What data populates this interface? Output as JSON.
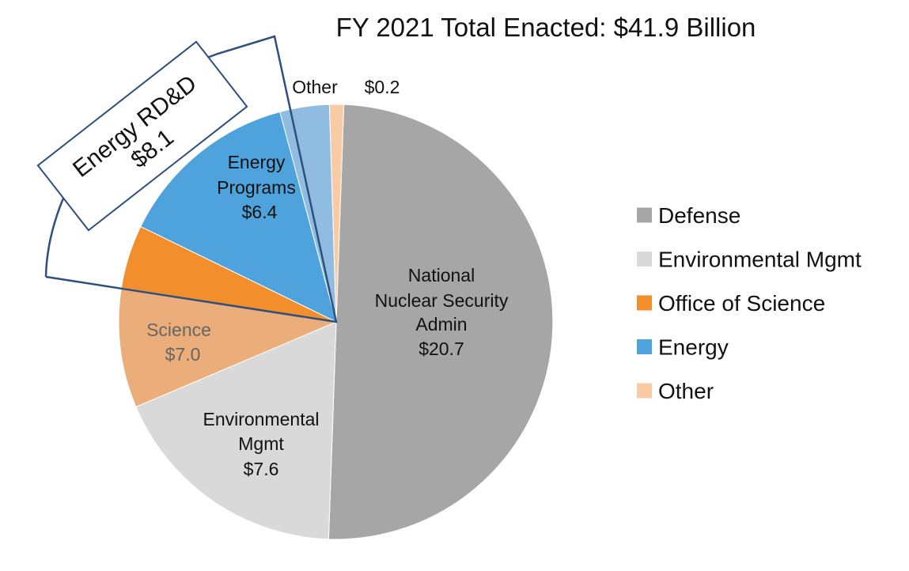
{
  "chart_data": {
    "type": "pie",
    "title": "FY 2021 Total Enacted: $41.9 Billion",
    "unit": "$ Billion",
    "colors": {
      "defense": "#a6a6a6",
      "environmental": "#d9d9d9",
      "science": "#f4b183",
      "science_slice": "#ebad79",
      "office_of_science": "#f28e2b",
      "energy": "#4ea3dd",
      "energy_light": "#8fbce0",
      "other": "#f8cba4",
      "callout_line": "#2f4f7f"
    },
    "slices": [
      {
        "name": "National Nuclear Security Admin",
        "category": "Defense",
        "value": 20.7
      },
      {
        "name": "Environmental Mgmt",
        "category": "Environmental Mgmt",
        "value": 7.6
      },
      {
        "name": "Science",
        "category": "Office of Science",
        "value": 7.0
      },
      {
        "name": "Energy Programs",
        "category": "Energy",
        "value": 6.4
      },
      {
        "name": "Other",
        "category": "Other",
        "value": 0.2
      }
    ],
    "labels": {
      "nnsa": [
        "National",
        "Nuclear Security",
        "Admin",
        "$20.7"
      ],
      "em": [
        "Environmental",
        "Mgmt",
        "$7.6"
      ],
      "science": [
        "Science",
        "$7.0"
      ],
      "energy": [
        "Energy",
        "Programs",
        "$6.4"
      ],
      "other_name": "Other",
      "other_value": "$0.2"
    },
    "callout": {
      "title": "Energy RD&D",
      "value": "$8.1"
    },
    "legend": {
      "position": "right",
      "items": [
        {
          "label": "Defense",
          "color": "#a6a6a6"
        },
        {
          "label": "Environmental Mgmt",
          "color": "#d9d9d9"
        },
        {
          "label": "Office of Science",
          "color": "#f28e2b"
        },
        {
          "label": "Energy",
          "color": "#4ea3dd"
        },
        {
          "label": "Other",
          "color": "#f8cba4"
        }
      ]
    }
  }
}
